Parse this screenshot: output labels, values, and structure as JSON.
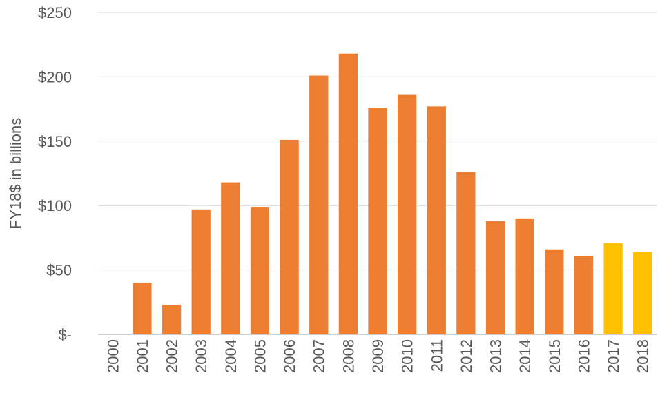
{
  "chart_data": {
    "type": "bar",
    "title": "",
    "xlabel": "",
    "ylabel": "FY18$ in billions",
    "ylim": [
      0,
      250
    ],
    "yticks": [
      0,
      50,
      100,
      150,
      200,
      250
    ],
    "ytick_labels": [
      "$-",
      "$50",
      "$100",
      "$150",
      "$200",
      "$250"
    ],
    "grid": true,
    "legend": "none",
    "categories": [
      "2000",
      "2001",
      "2002",
      "2003",
      "2004",
      "2005",
      "2006",
      "2007",
      "2008",
      "2009",
      "2010",
      "2011",
      "2012",
      "2013",
      "2014",
      "2015",
      "2016",
      "2017",
      "2018"
    ],
    "values": [
      0,
      40,
      23,
      97,
      118,
      99,
      151,
      201,
      218,
      176,
      186,
      177,
      126,
      88,
      90,
      66,
      61,
      71,
      64
    ],
    "bar_colors": [
      "#ed7d31",
      "#ed7d31",
      "#ed7d31",
      "#ed7d31",
      "#ed7d31",
      "#ed7d31",
      "#ed7d31",
      "#ed7d31",
      "#ed7d31",
      "#ed7d31",
      "#ed7d31",
      "#ed7d31",
      "#ed7d31",
      "#ed7d31",
      "#ed7d31",
      "#ed7d31",
      "#ed7d31",
      "#ffc000",
      "#ffc000"
    ],
    "colors": {
      "primary_bar": "#ed7d31",
      "highlight_bar": "#ffc000",
      "grid": "#d9d9d9",
      "text": "#595959"
    }
  }
}
